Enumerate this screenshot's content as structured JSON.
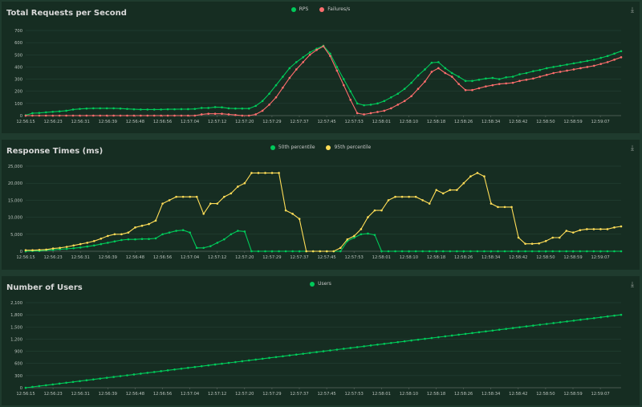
{
  "charts": [
    {
      "title": "Total Requests per Second",
      "legend": [
        {
          "label": "RPS",
          "color": "#00ca5a"
        },
        {
          "label": "Failures/s",
          "color": "#ff6d6d"
        }
      ],
      "tool_icon": "save-image-icon"
    },
    {
      "title": "Response Times (ms)",
      "legend": [
        {
          "label": "50th percentile",
          "color": "#00ca5a"
        },
        {
          "label": "95th percentile",
          "color": "#ffdd57"
        }
      ],
      "tool_icon": "save-image-icon"
    },
    {
      "title": "Number of Users",
      "legend": [
        {
          "label": "Users",
          "color": "#00ca5a"
        }
      ],
      "tool_icon": "save-image-icon"
    }
  ],
  "chart_data": [
    {
      "type": "line",
      "title": "Total Requests per Second",
      "x_ticks": [
        "12:56:15",
        "12:56:23",
        "12:56:31",
        "12:56:39",
        "12:56:48",
        "12:56:56",
        "12:57:04",
        "12:57:12",
        "12:57:20",
        "12:57:29",
        "12:57:37",
        "12:57:45",
        "12:57:53",
        "12:58:01",
        "12:58:10",
        "12:58:18",
        "12:58:26",
        "12:58:34",
        "12:58:42",
        "12:58:50",
        "12:58:59",
        "12:59:07"
      ],
      "yticks": [
        0,
        100,
        200,
        300,
        400,
        500,
        600,
        700
      ],
      "ylim": [
        0,
        700
      ],
      "series": [
        {
          "name": "RPS",
          "color": "#00ca5a",
          "values": [
            3,
            20,
            22,
            27,
            31,
            35,
            40,
            50,
            55,
            58,
            60,
            60,
            60,
            60,
            58,
            55,
            52,
            50,
            50,
            50,
            50,
            52,
            52,
            53,
            53,
            55,
            63,
            63,
            70,
            68,
            60,
            58,
            58,
            58,
            80,
            120,
            180,
            250,
            320,
            390,
            440,
            480,
            520,
            550,
            575,
            510,
            400,
            300,
            200,
            100,
            85,
            90,
            100,
            120,
            150,
            180,
            220,
            270,
            330,
            380,
            435,
            440,
            390,
            350,
            320,
            285,
            285,
            295,
            305,
            310,
            300,
            315,
            320,
            340,
            350,
            365,
            375,
            390,
            400,
            410,
            420,
            430,
            440,
            450,
            460,
            475,
            490,
            510,
            530
          ]
        },
        {
          "name": "Failures/s",
          "color": "#ff6d6d",
          "values": [
            0,
            0,
            0,
            0,
            0,
            0,
            0,
            0,
            0,
            0,
            0,
            0,
            0,
            0,
            0,
            0,
            0,
            0,
            0,
            0,
            0,
            0,
            0,
            0,
            0,
            0,
            10,
            15,
            15,
            15,
            10,
            5,
            0,
            0,
            10,
            40,
            90,
            150,
            230,
            310,
            380,
            440,
            500,
            540,
            570,
            490,
            370,
            250,
            130,
            20,
            10,
            20,
            30,
            40,
            60,
            90,
            120,
            160,
            220,
            280,
            360,
            390,
            350,
            320,
            260,
            210,
            210,
            225,
            240,
            250,
            260,
            265,
            270,
            285,
            295,
            305,
            320,
            335,
            350,
            360,
            370,
            380,
            390,
            400,
            410,
            425,
            440,
            460,
            480
          ]
        }
      ]
    },
    {
      "type": "line",
      "title": "Response Times (ms)",
      "x_ticks": [
        "12:56:15",
        "12:56:23",
        "12:56:31",
        "12:56:39",
        "12:56:48",
        "12:56:56",
        "12:57:04",
        "12:57:12",
        "12:57:20",
        "12:57:29",
        "12:57:37",
        "12:57:45",
        "12:57:53",
        "12:58:01",
        "12:58:10",
        "12:58:18",
        "12:58:26",
        "12:58:34",
        "12:58:42",
        "12:58:50",
        "12:58:59",
        "12:59:07"
      ],
      "yticks": [
        0,
        5000,
        10000,
        15000,
        20000,
        25000
      ],
      "ylim": [
        0,
        25000
      ],
      "series": [
        {
          "name": "50th percentile",
          "color": "#00ca5a",
          "values": [
            0,
            100,
            100,
            300,
            400,
            600,
            700,
            900,
            1100,
            1400,
            1700,
            2100,
            2500,
            2900,
            3300,
            3500,
            3500,
            3600,
            3600,
            3800,
            5000,
            5500,
            6000,
            6200,
            5500,
            1000,
            1000,
            1500,
            2500,
            3500,
            5000,
            6000,
            5800,
            0,
            0,
            0,
            0,
            0,
            0,
            0,
            0,
            0,
            0,
            0,
            0,
            0,
            0,
            3000,
            4000,
            5000,
            5200,
            4800,
            0,
            0,
            0,
            0,
            0,
            0,
            0,
            0,
            0,
            0,
            0,
            0,
            0,
            0,
            0,
            0,
            0,
            0,
            0,
            0,
            0,
            0,
            0,
            0,
            0,
            0,
            0,
            0,
            0,
            0,
            0,
            0,
            0,
            0,
            0,
            0
          ]
        },
        {
          "name": "95th percentile",
          "color": "#ffdd57",
          "values": [
            300,
            300,
            400,
            500,
            800,
            1000,
            1300,
            1700,
            2100,
            2500,
            3000,
            3700,
            4500,
            5000,
            5000,
            5500,
            7000,
            7500,
            8000,
            9000,
            14000,
            15000,
            16000,
            16000,
            16000,
            16000,
            11000,
            14000,
            14000,
            16000,
            17000,
            19000,
            20000,
            23000,
            23000,
            23000,
            23000,
            23000,
            12000,
            11000,
            9500,
            0,
            0,
            0,
            0,
            0,
            1000,
            3500,
            4500,
            6500,
            10000,
            12000,
            12000,
            15000,
            16000,
            16000,
            16000,
            16000,
            15000,
            14000,
            18000,
            17000,
            18000,
            18000,
            20000,
            22000,
            23000,
            22000,
            14000,
            13000,
            13000,
            13000,
            4000,
            2200,
            2200,
            2300,
            3000,
            4000,
            4000,
            6000,
            5500,
            6200,
            6500,
            6500,
            6500,
            6500,
            7000,
            7300
          ]
        }
      ]
    },
    {
      "type": "line",
      "title": "Number of Users",
      "x_ticks": [
        "12:56:15",
        "12:56:23",
        "12:56:31",
        "12:56:39",
        "12:56:48",
        "12:56:56",
        "12:57:04",
        "12:57:12",
        "12:57:20",
        "12:57:29",
        "12:57:37",
        "12:57:45",
        "12:57:53",
        "12:58:01",
        "12:58:10",
        "12:58:18",
        "12:58:26",
        "12:58:34",
        "12:58:42",
        "12:58:50",
        "12:58:59",
        "12:59:07"
      ],
      "yticks": [
        0,
        300,
        600,
        900,
        1200,
        1500,
        1800,
        2100
      ],
      "ylim": [
        0,
        2100
      ],
      "series": [
        {
          "name": "Users",
          "color": "#00ca5a",
          "linear": {
            "start": 0,
            "end": 1800,
            "count": 89
          }
        }
      ]
    }
  ]
}
